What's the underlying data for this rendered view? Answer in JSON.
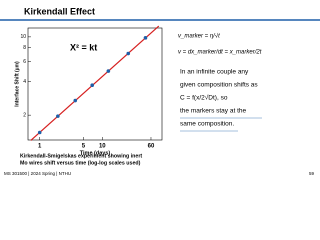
{
  "header": {
    "title": "Kirkendall Effect"
  },
  "chart_data": {
    "type": "scatter",
    "annotation": "X² = kt",
    "xlabel": "Time (days)",
    "ylabel": "Interface Shift (µm)",
    "xlog": true,
    "ylog": true,
    "xlim": [
      0.65,
      90
    ],
    "ylim": [
      1.2,
      12
    ],
    "xticks": [
      1,
      5,
      10,
      60
    ],
    "yticks": [
      2,
      4,
      6,
      8,
      10
    ],
    "series": [
      {
        "color": "#1f5fa8",
        "x": [
          1,
          1.95,
          3.7,
          6.9,
          12.5,
          26,
          49
        ],
        "values": [
          1.4,
          1.96,
          2.7,
          3.7,
          4.95,
          7.1,
          9.8
        ]
      },
      {
        "color": "#d62020",
        "x": [
          0.72,
          80
        ],
        "values": [
          1.19,
          12.5
        ]
      }
    ]
  },
  "caption": [
    "Kirkendall-Smigelskas experiment showing inert",
    "Mo wires shift versus time (log-log scales used)"
  ],
  "equations": [
    "v_marker = η/√t",
    "v = dx_marker/dt = x_marker/2t"
  ],
  "body": [
    "In an infinite couple any",
    "given composition shifts as",
    "C = f(x/2√Dt), so",
    "the markers stay at the",
    "same composition."
  ],
  "footer": {
    "course": "MS 301500 | 2024 Spring | NTHU",
    "page": "59"
  }
}
